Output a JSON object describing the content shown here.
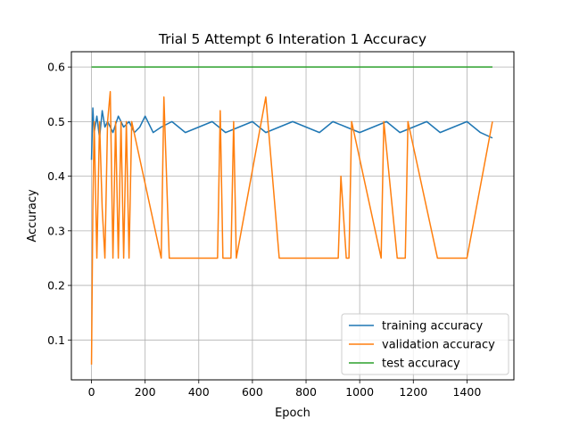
{
  "chart_data": {
    "type": "line",
    "title": "Trial 5 Attempt 6 Interation 1 Accuracy",
    "xlabel": "Epoch",
    "ylabel": "Accuracy",
    "xlim": [
      -75,
      1575
    ],
    "ylim": [
      0.027,
      0.628
    ],
    "xticks": [
      0,
      200,
      400,
      600,
      800,
      1000,
      1200,
      1400
    ],
    "yticks": [
      0.1,
      0.2,
      0.3,
      0.4,
      0.5,
      0.6
    ],
    "grid": true,
    "legend_position": "lower-right",
    "series": [
      {
        "name": "training accuracy",
        "color": "#1f77b4",
        "x": [
          0,
          5,
          10,
          20,
          30,
          40,
          50,
          60,
          80,
          100,
          120,
          140,
          160,
          180,
          200,
          230,
          260,
          300,
          350,
          400,
          450,
          500,
          550,
          600,
          650,
          700,
          750,
          800,
          850,
          900,
          950,
          1000,
          1050,
          1100,
          1150,
          1200,
          1250,
          1300,
          1350,
          1400,
          1450,
          1495
        ],
        "y": [
          0.43,
          0.525,
          0.48,
          0.51,
          0.47,
          0.52,
          0.49,
          0.5,
          0.48,
          0.51,
          0.49,
          0.5,
          0.48,
          0.49,
          0.51,
          0.48,
          0.49,
          0.5,
          0.48,
          0.49,
          0.5,
          0.48,
          0.49,
          0.5,
          0.48,
          0.49,
          0.5,
          0.49,
          0.48,
          0.5,
          0.49,
          0.48,
          0.49,
          0.5,
          0.48,
          0.49,
          0.5,
          0.48,
          0.49,
          0.5,
          0.48,
          0.47
        ]
      },
      {
        "name": "validation accuracy",
        "color": "#ff7f0e",
        "x": [
          0,
          5,
          10,
          20,
          30,
          40,
          50,
          60,
          70,
          80,
          90,
          100,
          110,
          120,
          130,
          140,
          150,
          260,
          270,
          290,
          330,
          470,
          480,
          490,
          520,
          530,
          540,
          650,
          700,
          920,
          930,
          950,
          960,
          970,
          1080,
          1090,
          1140,
          1150,
          1170,
          1180,
          1290,
          1340,
          1360,
          1400,
          1495
        ],
        "y": [
          0.055,
          0.34,
          0.5,
          0.25,
          0.5,
          0.34,
          0.25,
          0.5,
          0.555,
          0.25,
          0.5,
          0.25,
          0.5,
          0.25,
          0.5,
          0.25,
          0.5,
          0.25,
          0.545,
          0.25,
          0.25,
          0.25,
          0.52,
          0.25,
          0.25,
          0.5,
          0.25,
          0.545,
          0.25,
          0.25,
          0.4,
          0.25,
          0.25,
          0.5,
          0.25,
          0.5,
          0.25,
          0.25,
          0.25,
          0.5,
          0.25,
          0.25,
          0.25,
          0.25,
          0.5
        ]
      },
      {
        "name": "test accuracy",
        "color": "#2ca02c",
        "x": [
          0,
          1495
        ],
        "y": [
          0.6,
          0.6
        ]
      }
    ]
  }
}
